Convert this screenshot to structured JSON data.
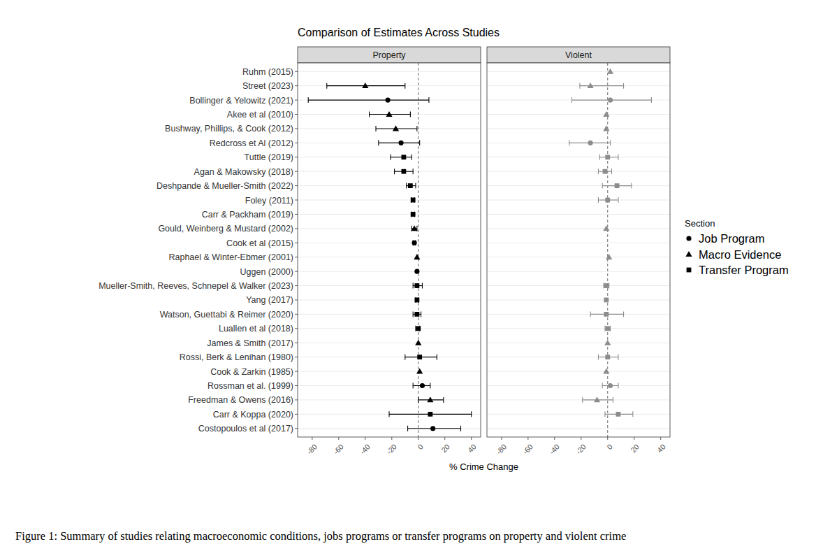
{
  "chart_data": {
    "type": "forest",
    "orientation": "horizontal",
    "title": "Comparison of Estimates Across Studies",
    "x_label": "% Crime Change",
    "grid": true,
    "legend": "right",
    "legend_title": "Section",
    "sections": [
      {
        "name": "Job Program",
        "marker": "circle"
      },
      {
        "name": "Macro Evidence",
        "marker": "triangle"
      },
      {
        "name": "Transfer Program",
        "marker": "square"
      }
    ],
    "categories": [
      "Ruhm (2015)",
      "Street (2023)",
      "Bollinger & Yelowitz (2021)",
      "Akee et al (2010)",
      "Bushway, Phillips, & Cook (2012)",
      "Redcross et Al (2012)",
      "Tuttle (2019)",
      "Agan & Makowsky (2018)",
      "Deshpande & Mueller-Smith (2022)",
      "Foley (2011)",
      "Carr & Packham (2019)",
      "Gould, Weinberg & Mustard (2002)",
      "Cook et al (2015)",
      "Raphael & Winter-Ebmer (2001)",
      "Uggen (2000)",
      "Mueller-Smith, Reeves, Schnepel & Walker (2023)",
      "Yang (2017)",
      "Watson, Guettabi & Reimer (2020)",
      "Luallen et al (2018)",
      "James & Smith (2017)",
      "Rossi, Berk & Lenihan (1980)",
      "Cook &  Zarkin  (1985)",
      "Rossman et al. (1999)",
      "Freedman & Owens (2016)",
      "Carr & Koppa (2020)",
      "Costopoulos et al (2017)"
    ],
    "section": [
      "Macro Evidence",
      "Macro Evidence",
      "Job Program",
      "Macro Evidence",
      "Macro Evidence",
      "Job Program",
      "Transfer Program",
      "Transfer Program",
      "Transfer Program",
      "Transfer Program",
      "Transfer Program",
      "Macro Evidence",
      "Job Program",
      "Macro Evidence",
      "Job Program",
      "Transfer Program",
      "Transfer Program",
      "Transfer Program",
      "Transfer Program",
      "Macro Evidence",
      "Transfer Program",
      "Macro Evidence",
      "Job Program",
      "Macro Evidence",
      "Transfer Program",
      "Job Program"
    ],
    "xlim": [
      -91,
      47
    ],
    "xticks": [
      -80,
      -60,
      -40,
      -20,
      0,
      20,
      40
    ],
    "series": [
      {
        "name": "Property",
        "color": "#000000",
        "values": [
          null,
          -40,
          -23,
          -22,
          -17,
          -13,
          -11,
          -11,
          -6,
          -4,
          -4,
          -3,
          -3,
          -1,
          -1,
          -1,
          -1,
          -1,
          0,
          0,
          1,
          1,
          3,
          9,
          9,
          11
        ],
        "lower": [
          null,
          -69,
          -83,
          -37,
          -32,
          -30,
          -21,
          -18,
          -9,
          -5,
          -5,
          -5,
          -4,
          null,
          null,
          -4,
          -2,
          -4,
          -2,
          null,
          -10,
          null,
          -4,
          0,
          -22,
          -8
        ],
        "upper": [
          null,
          -10,
          8,
          -6,
          -1,
          1,
          -5,
          -4,
          -2,
          -3,
          -3,
          -1,
          -2,
          null,
          null,
          3,
          0,
          2,
          1,
          null,
          14,
          null,
          9,
          19,
          40,
          32
        ]
      },
      {
        "name": "Violent",
        "color": "#8c8c8c",
        "values": [
          2,
          -13,
          2,
          -1,
          -1,
          -13,
          0,
          -2,
          7,
          0,
          null,
          -1,
          null,
          1,
          null,
          -1,
          -1,
          -1,
          0,
          0,
          0,
          -1,
          2,
          -8,
          8,
          null
        ],
        "lower": [
          null,
          -21,
          -27,
          null,
          null,
          -29,
          -6,
          -7,
          -4,
          -7,
          null,
          null,
          null,
          null,
          null,
          -3,
          null,
          -13,
          -2,
          null,
          -7,
          null,
          -4,
          -19,
          -2,
          null
        ],
        "upper": [
          null,
          12,
          33,
          null,
          null,
          2,
          8,
          3,
          18,
          8,
          null,
          null,
          null,
          null,
          null,
          1,
          null,
          12,
          2,
          null,
          8,
          null,
          8,
          4,
          19,
          null
        ]
      }
    ]
  },
  "caption": "Figure 1: Summary of studies relating macroeconomic conditions, jobs programs or transfer programs on property and violent crime"
}
